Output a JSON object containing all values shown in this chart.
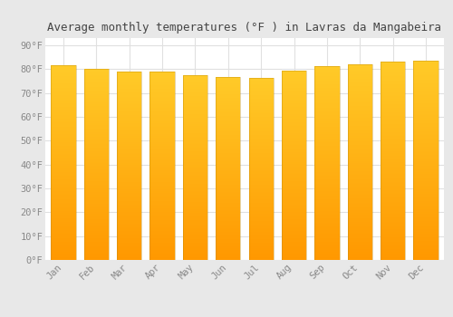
{
  "months": [
    "Jan",
    "Feb",
    "Mar",
    "Apr",
    "May",
    "Jun",
    "Jul",
    "Aug",
    "Sep",
    "Oct",
    "Nov",
    "Dec"
  ],
  "values": [
    81.5,
    80.1,
    79.0,
    79.0,
    77.5,
    76.5,
    76.3,
    79.5,
    81.3,
    82.0,
    83.0,
    83.5
  ],
  "bar_color_top": "#FFCA28",
  "bar_color_bottom": "#FF9800",
  "bar_edge_color": "#B8860B",
  "plot_bg_color": "#ffffff",
  "fig_bg_color": "#e8e8e8",
  "grid_color": "#e0e0e0",
  "title": "Average monthly temperatures (°F ) in Lavras da Mangabeira",
  "title_fontsize": 9,
  "tick_fontsize": 7.5,
  "ylabel_ticks": [
    0,
    10,
    20,
    30,
    40,
    50,
    60,
    70,
    80,
    90
  ],
  "ylim": [
    0,
    93
  ],
  "tick_color": "#888888",
  "title_color": "#444444",
  "bar_width": 0.75,
  "n_grad": 150
}
